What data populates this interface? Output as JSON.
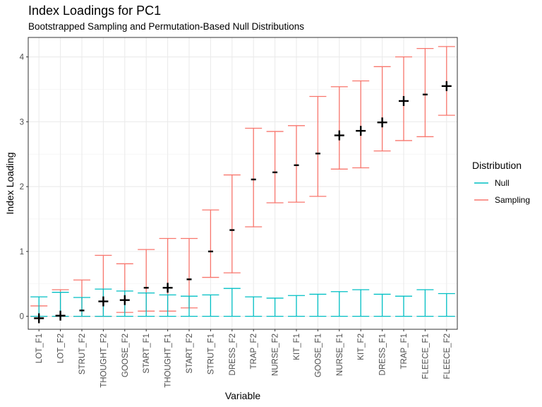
{
  "chart_data": {
    "type": "errorbar",
    "title": "Index Loadings for PC1",
    "subtitle": "Bootstrapped Sampling and Permutation-Based Null Distributions",
    "xlabel": "Variable",
    "ylabel": "Index Loading",
    "ylim": [
      -0.2,
      4.3
    ],
    "yticks": [
      0,
      1,
      2,
      3,
      4
    ],
    "grid": true,
    "categories": [
      "LOT_F1",
      "LOT_F2",
      "STRUT_F2",
      "THOUGHT_F2",
      "GOOSE_F2",
      "START_F1",
      "THOUGHT_F1",
      "START_F2",
      "STRUT_F1",
      "DRESS_F2",
      "TRAP_F2",
      "NURSE_F2",
      "KIT_F1",
      "GOOSE_F1",
      "NURSE_F1",
      "KIT_F2",
      "DRESS_F1",
      "TRAP_F1",
      "FLEECE_F1",
      "FLEECE_F2"
    ],
    "estimates": [
      -0.03,
      0.01,
      0.09,
      0.23,
      0.25,
      0.44,
      0.44,
      0.57,
      1.0,
      1.33,
      2.11,
      2.22,
      2.33,
      2.51,
      2.79,
      2.86,
      2.99,
      3.32,
      3.42,
      3.55
    ],
    "significant": [
      true,
      true,
      false,
      true,
      true,
      false,
      true,
      false,
      false,
      false,
      false,
      false,
      false,
      false,
      true,
      true,
      true,
      true,
      false,
      true
    ],
    "series": [
      {
        "name": "Null",
        "color": "#00BFC4",
        "lower": [
          0,
          0,
          0,
          0,
          0,
          0,
          0,
          0,
          0,
          0,
          0,
          0,
          0,
          0,
          0,
          0,
          0,
          0,
          0,
          0
        ],
        "upper": [
          0.3,
          0.37,
          0.29,
          0.42,
          0.39,
          0.36,
          0.33,
          0.31,
          0.33,
          0.43,
          0.3,
          0.28,
          0.32,
          0.34,
          0.38,
          0.41,
          0.34,
          0.31,
          0.41,
          0.35
        ]
      },
      {
        "name": "Sampling",
        "color": "#F8766D",
        "lower": [
          0.0,
          0.0,
          0.0,
          0.0,
          0.06,
          0.08,
          0.08,
          0.13,
          0.6,
          0.67,
          1.38,
          1.75,
          1.76,
          1.85,
          2.27,
          2.29,
          2.55,
          2.71,
          2.77,
          3.1
        ],
        "upper": [
          0.16,
          0.41,
          0.56,
          0.94,
          0.81,
          1.03,
          1.2,
          1.2,
          1.64,
          2.18,
          2.9,
          2.85,
          2.94,
          3.39,
          3.54,
          3.63,
          3.85,
          4.0,
          4.13,
          4.16
        ]
      }
    ],
    "legend": {
      "title": "Distribution",
      "position": "right"
    }
  }
}
